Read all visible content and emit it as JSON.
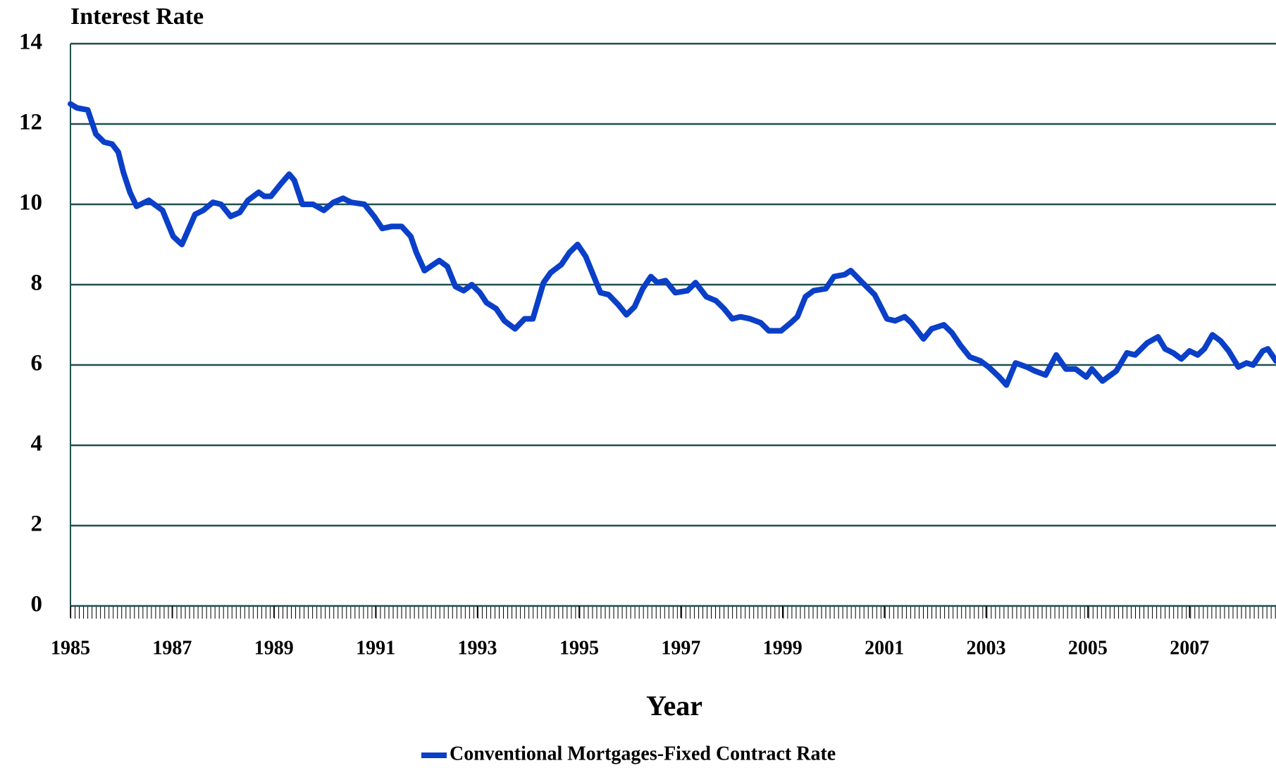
{
  "chart_data": {
    "type": "line",
    "ylabel": "Interest Rate",
    "xlabel": "Year",
    "xlim": [
      1985,
      2008.7
    ],
    "xticks": [
      1985,
      1987,
      1989,
      1991,
      1993,
      1995,
      1997,
      1999,
      2001,
      2003,
      2005,
      2007
    ],
    "ylim": [
      0,
      14
    ],
    "yticks": [
      0,
      2,
      4,
      6,
      8,
      10,
      12,
      14
    ],
    "grid": true,
    "legend": "bottom",
    "x": [
      1985.0,
      1985.13,
      1985.34,
      1985.5,
      1985.66,
      1985.82,
      1985.94,
      1986.04,
      1986.17,
      1986.3,
      1986.54,
      1986.81,
      1987.02,
      1987.19,
      1987.45,
      1987.61,
      1987.8,
      1987.96,
      1988.15,
      1988.33,
      1988.49,
      1988.7,
      1988.81,
      1988.94,
      1989.13,
      1989.3,
      1989.4,
      1989.56,
      1989.77,
      1989.98,
      1990.17,
      1990.36,
      1990.52,
      1990.78,
      1990.97,
      1991.13,
      1991.32,
      1991.51,
      1991.69,
      1991.8,
      1991.96,
      1992.25,
      1992.41,
      1992.57,
      1992.73,
      1992.89,
      1993.05,
      1993.18,
      1993.37,
      1993.53,
      1993.74,
      1993.93,
      1994.09,
      1994.3,
      1994.44,
      1994.65,
      1994.81,
      1994.97,
      1995.13,
      1995.29,
      1995.42,
      1995.58,
      1995.77,
      1995.93,
      1996.09,
      1996.25,
      1996.41,
      1996.54,
      1996.7,
      1996.89,
      1997.13,
      1997.29,
      1997.5,
      1997.69,
      1997.85,
      1998.01,
      1998.17,
      1998.36,
      1998.57,
      1998.73,
      1998.97,
      1999.16,
      1999.29,
      1999.45,
      1999.61,
      1999.85,
      2000.01,
      2000.22,
      2000.34,
      2000.57,
      2000.81,
      2001.05,
      2001.21,
      2001.4,
      2001.53,
      2001.77,
      2001.93,
      2002.17,
      2002.33,
      2002.49,
      2002.68,
      2002.89,
      2003.05,
      2003.26,
      2003.4,
      2003.58,
      2003.8,
      2003.96,
      2004.17,
      2004.38,
      2004.57,
      2004.76,
      2004.97,
      2005.08,
      2005.29,
      2005.45,
      2005.56,
      2005.77,
      2005.93,
      2006.17,
      2006.38,
      2006.52,
      2006.68,
      2006.84,
      2007.0,
      2007.16,
      2007.29,
      2007.45,
      2007.61,
      2007.77,
      2007.96,
      2008.12,
      2008.25,
      2008.44,
      2008.54,
      2008.7
    ],
    "series": [
      {
        "name": "Conventional Mortgages-Fixed Contract Rate",
        "color": "#0a3fc8",
        "values": [
          12.5,
          12.4,
          12.35,
          11.75,
          11.55,
          11.5,
          11.3,
          10.8,
          10.3,
          9.95,
          10.1,
          9.85,
          9.2,
          9.0,
          9.75,
          9.85,
          10.05,
          10.0,
          9.7,
          9.8,
          10.1,
          10.3,
          10.2,
          10.2,
          10.5,
          10.75,
          10.6,
          10.0,
          10.0,
          9.85,
          10.05,
          10.15,
          10.05,
          10.0,
          9.7,
          9.4,
          9.45,
          9.45,
          9.2,
          8.8,
          8.35,
          8.6,
          8.45,
          7.95,
          7.85,
          8.0,
          7.8,
          7.55,
          7.4,
          7.1,
          6.9,
          7.15,
          7.15,
          8.05,
          8.3,
          8.5,
          8.8,
          9.0,
          8.7,
          8.2,
          7.8,
          7.75,
          7.5,
          7.25,
          7.45,
          7.9,
          8.2,
          8.05,
          8.1,
          7.8,
          7.85,
          8.05,
          7.7,
          7.6,
          7.4,
          7.15,
          7.2,
          7.15,
          7.05,
          6.85,
          6.85,
          7.05,
          7.2,
          7.7,
          7.85,
          7.9,
          8.2,
          8.25,
          8.35,
          8.05,
          7.75,
          7.15,
          7.1,
          7.2,
          7.05,
          6.65,
          6.9,
          7.0,
          6.8,
          6.5,
          6.2,
          6.1,
          5.95,
          5.7,
          5.5,
          6.05,
          5.95,
          5.85,
          5.75,
          6.25,
          5.9,
          5.9,
          5.7,
          5.9,
          5.6,
          5.75,
          5.85,
          6.3,
          6.25,
          6.55,
          6.7,
          6.4,
          6.3,
          6.15,
          6.35,
          6.25,
          6.4,
          6.75,
          6.6,
          6.35,
          5.95,
          6.05,
          6.0,
          6.35,
          6.4,
          6.1
        ]
      }
    ]
  }
}
